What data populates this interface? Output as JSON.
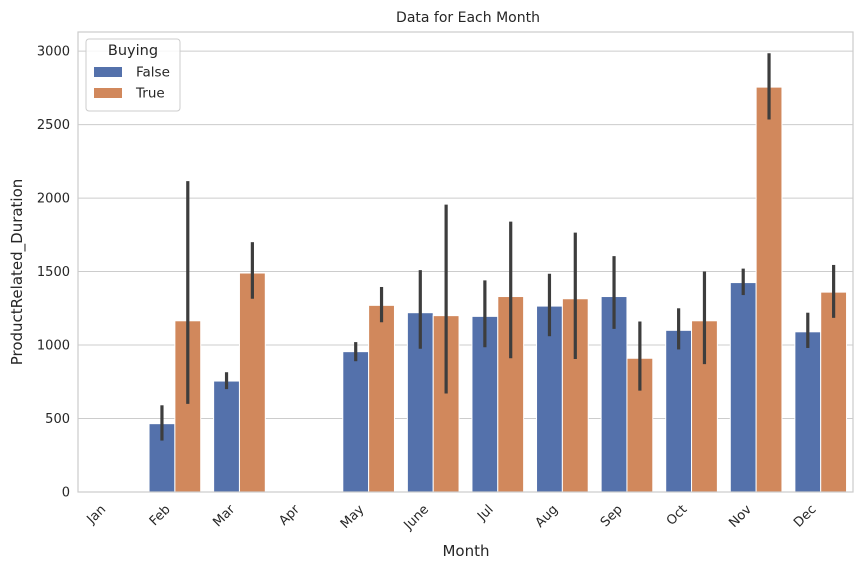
{
  "chart_data": {
    "type": "bar",
    "title": "Data for Each Month",
    "xlabel": "Month",
    "ylabel": "ProductRelated_Duration",
    "ylim": [
      0,
      3130
    ],
    "yticks": [
      0,
      500,
      1000,
      1500,
      2000,
      2500,
      3000
    ],
    "grid": "horizontal",
    "legend": {
      "title": "Buying",
      "placement": "top-left"
    },
    "categories": [
      "Jan",
      "Feb",
      "Mar",
      "Apr",
      "May",
      "June",
      "Jul",
      "Aug",
      "Sep",
      "Oct",
      "Nov",
      "Dec"
    ],
    "series": [
      {
        "name": "False",
        "color": "#5471ab",
        "values": [
          null,
          465,
          755,
          null,
          955,
          1220,
          1195,
          1265,
          1330,
          1100,
          1425,
          1090
        ],
        "ci_low": [
          null,
          350,
          700,
          null,
          890,
          975,
          985,
          1060,
          1110,
          970,
          1340,
          980
        ],
        "ci_high": [
          null,
          590,
          815,
          null,
          1020,
          1510,
          1440,
          1485,
          1605,
          1250,
          1520,
          1220
        ]
      },
      {
        "name": "True",
        "color": "#d1885c",
        "values": [
          null,
          1165,
          1490,
          null,
          1270,
          1200,
          1330,
          1315,
          910,
          1165,
          2755,
          1360
        ],
        "ci_low": [
          null,
          600,
          1315,
          null,
          1155,
          670,
          910,
          905,
          690,
          870,
          2535,
          1185
        ],
        "ci_high": [
          null,
          2115,
          1700,
          null,
          1395,
          1955,
          1840,
          1765,
          1160,
          1500,
          2985,
          1545
        ]
      }
    ]
  }
}
